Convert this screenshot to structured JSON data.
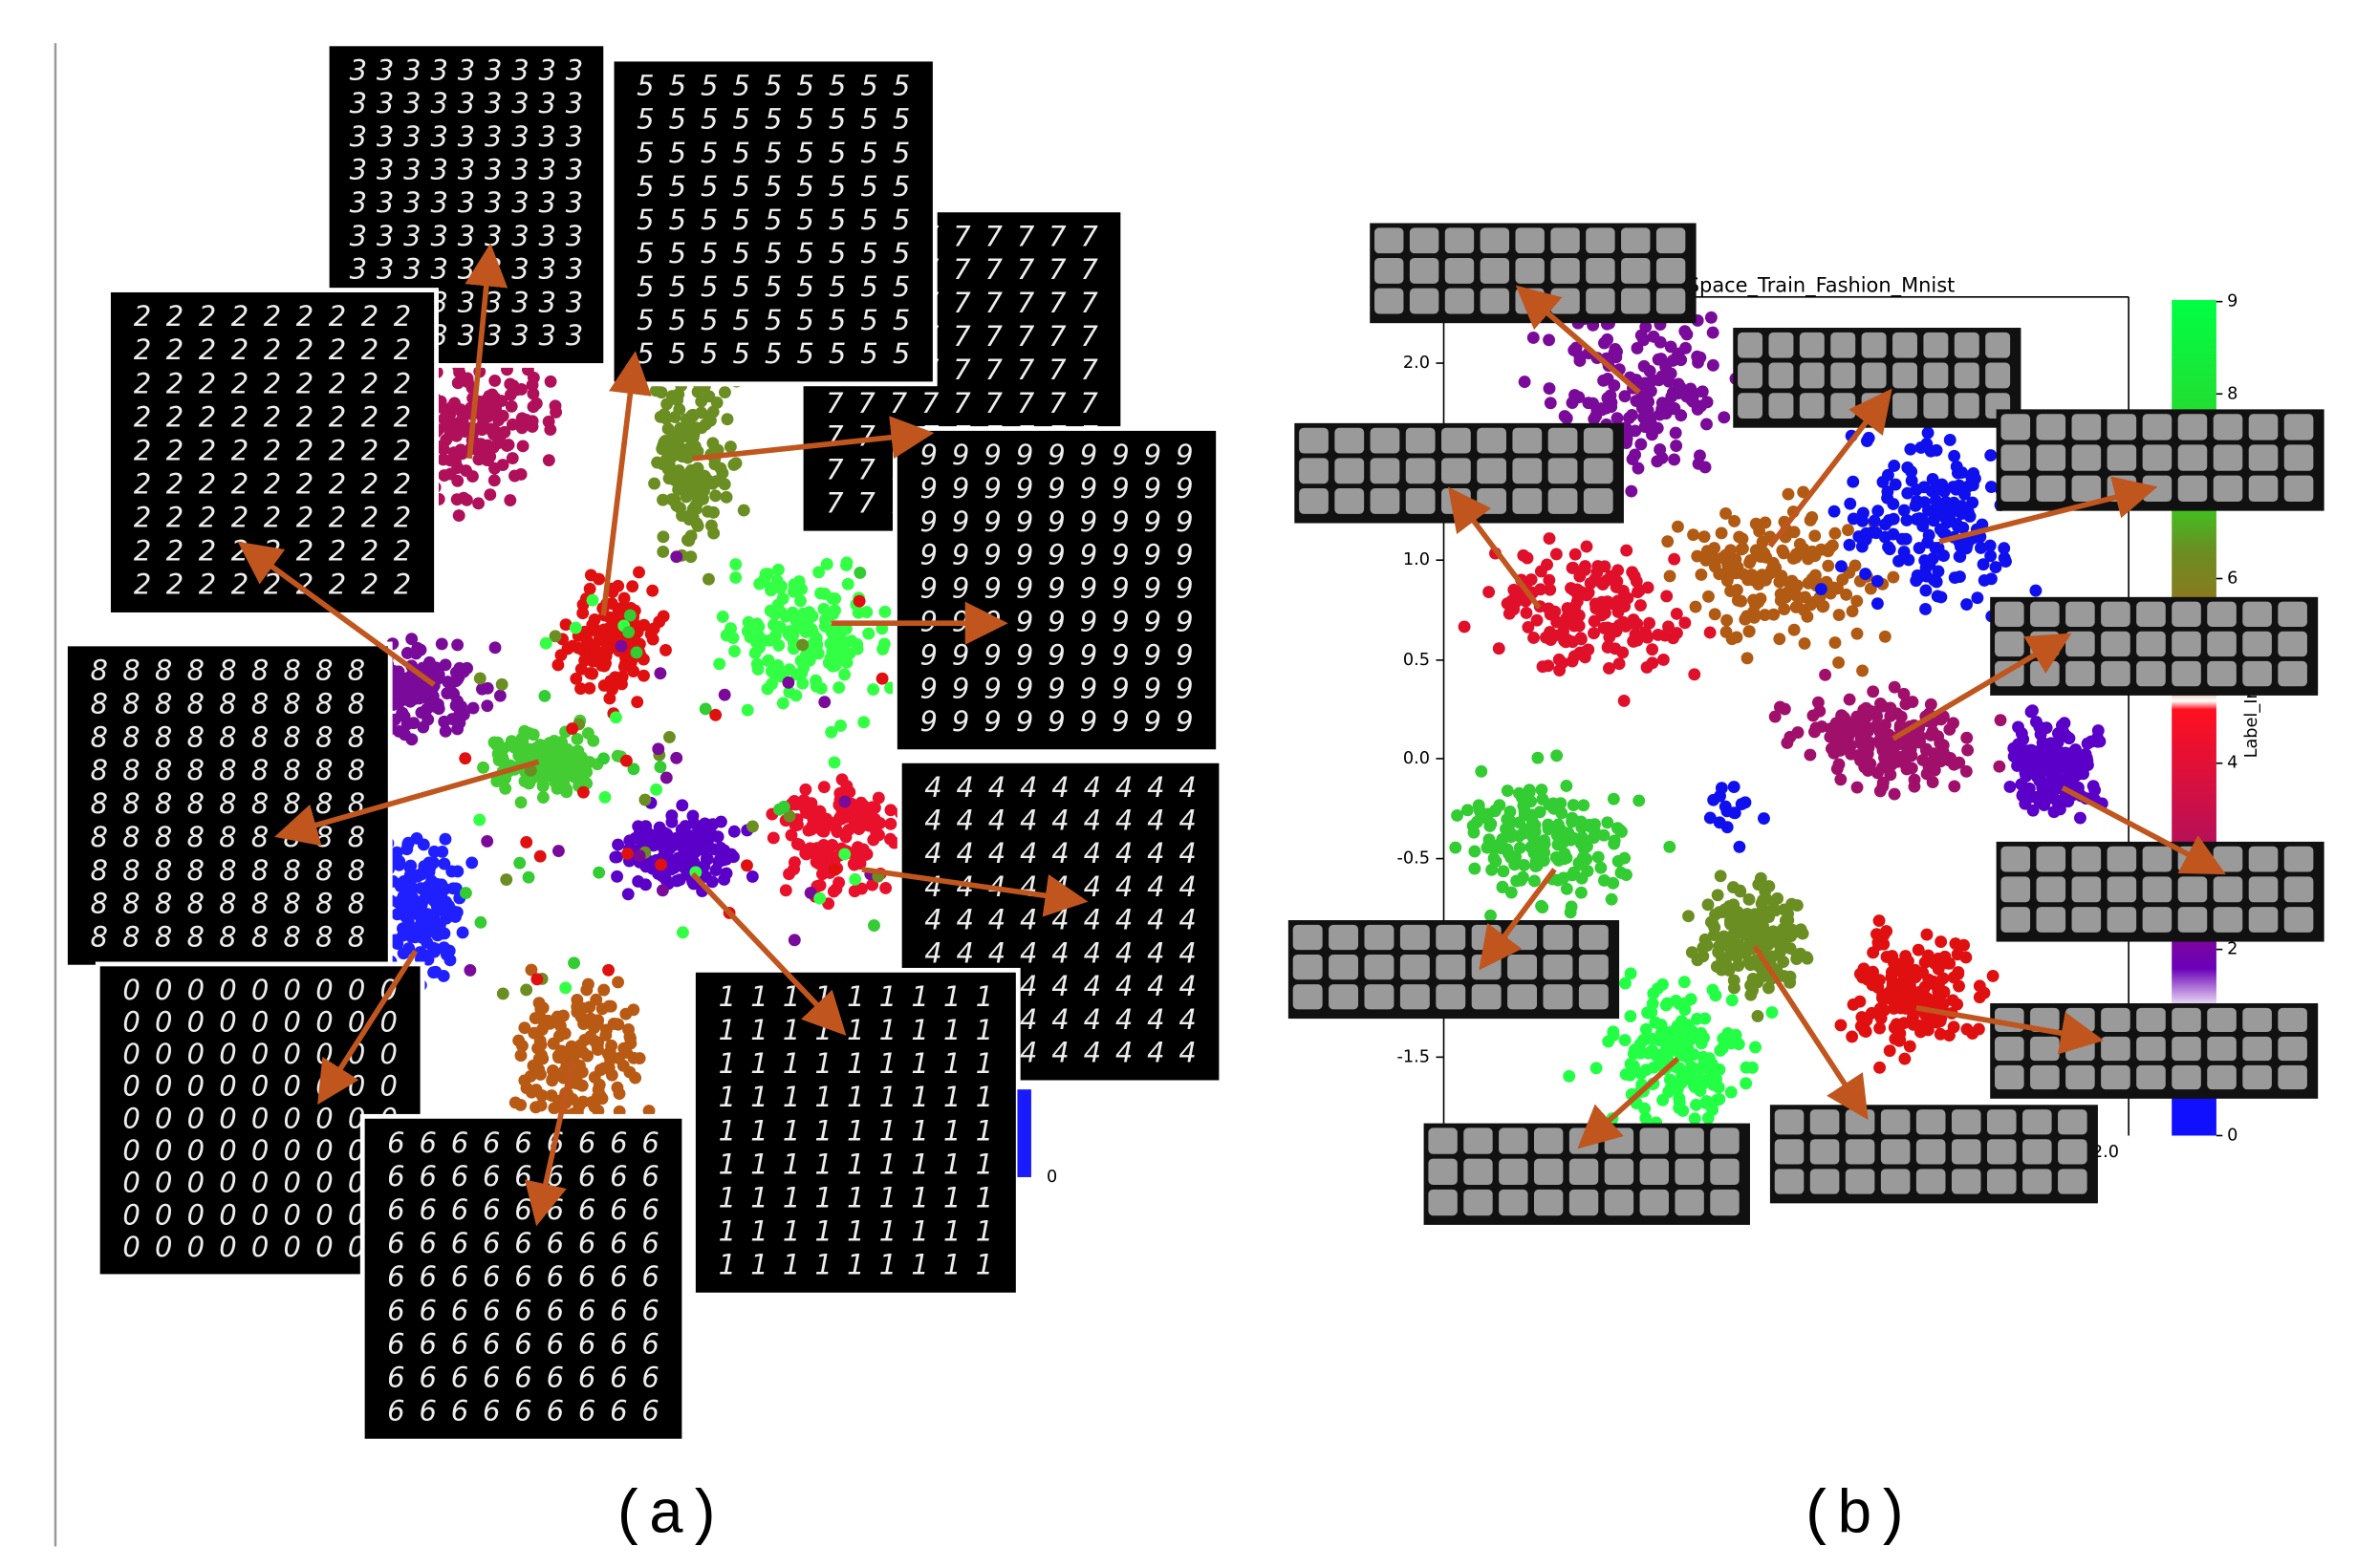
{
  "panels": [
    {
      "label": "(a)",
      "colorbar_ticks": [
        "0"
      ],
      "thumbnails": [
        {
          "glyph": "3"
        },
        {
          "glyph": "7"
        },
        {
          "glyph": "5"
        },
        {
          "glyph": "2"
        },
        {
          "glyph": "9"
        },
        {
          "glyph": "8"
        },
        {
          "glyph": "4"
        },
        {
          "glyph": "0"
        },
        {
          "glyph": "6"
        },
        {
          "glyph": "1"
        }
      ]
    },
    {
      "label": "(b)",
      "title": "Space_Train_Fashion_Mnist",
      "yticks": [
        "2.0",
        "1.0",
        "0.5",
        "0.0",
        "-0.5",
        "-1.5"
      ],
      "xticks": [
        "2.0"
      ],
      "colorbar_label": "Label_In",
      "colorbar_ticks": [
        "9",
        "8",
        "6",
        "4",
        "2",
        "0"
      ]
    }
  ]
}
